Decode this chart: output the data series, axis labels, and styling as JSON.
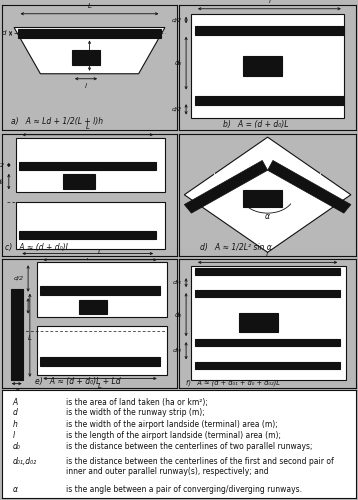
{
  "fig_width": 3.58,
  "fig_height": 5.0,
  "dpi": 100,
  "gray": "#b8b8b8",
  "white": "#ffffff",
  "black": "#111111",
  "panel_positions": {
    "a": [
      0.005,
      0.74,
      0.49,
      0.25
    ],
    "b": [
      0.5,
      0.74,
      0.495,
      0.25
    ],
    "c": [
      0.005,
      0.488,
      0.49,
      0.245
    ],
    "d": [
      0.5,
      0.488,
      0.495,
      0.245
    ],
    "e": [
      0.005,
      0.225,
      0.49,
      0.258
    ],
    "f": [
      0.5,
      0.225,
      0.495,
      0.258
    ],
    "leg": [
      0.005,
      0.005,
      0.99,
      0.215
    ]
  }
}
